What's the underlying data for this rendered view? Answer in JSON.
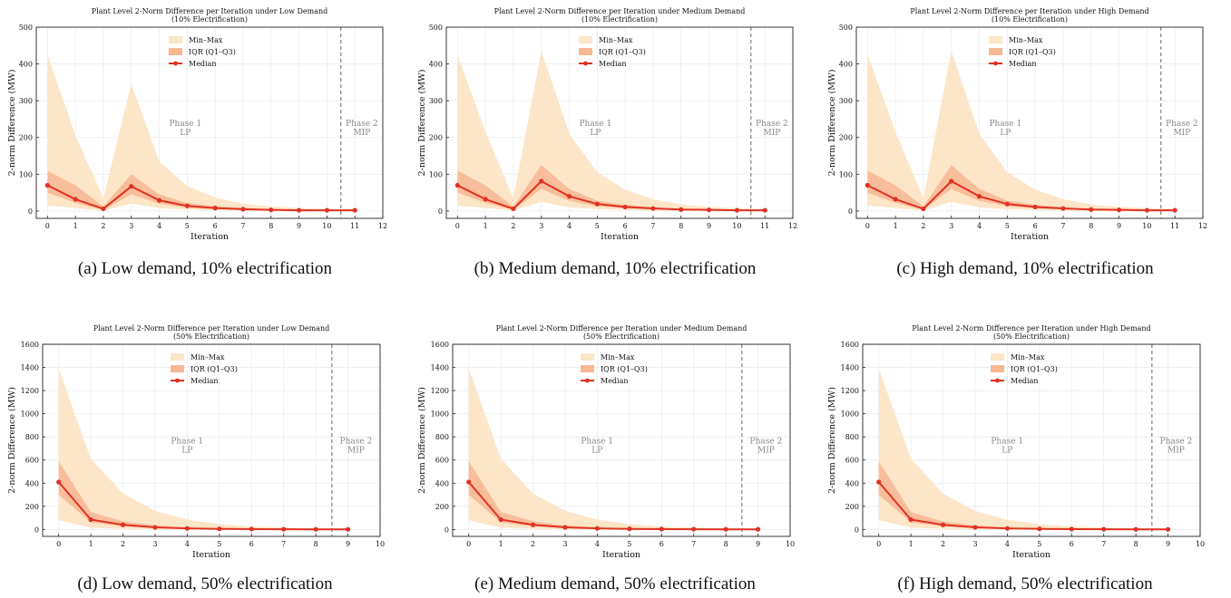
{
  "legend": {
    "minmax": "Min–Max",
    "iqr": "IQR (Q1–Q3)",
    "median": "Median"
  },
  "phase_labels": {
    "p1_line1": "Phase 1",
    "p1_line2": "LP",
    "p2_line1": "Phase 2",
    "p2_line2": "MIP"
  },
  "colors": {
    "minmax": "#fde5c8",
    "iqr": "#f7b793",
    "median": "#e03123",
    "phase_line": "#666666",
    "phase_text": "#888888"
  },
  "chart_data": [
    {
      "type": "area",
      "caption": "(a) Low demand, 10% electrification",
      "title": "Plant Level 2-Norm Difference per Iteration under Low  Demand",
      "subtitle": "(10% Electrification)",
      "xlabel": "Iteration",
      "ylabel": "2-norm Difference (MW)",
      "xlim": [
        -0.4,
        12
      ],
      "ylim": [
        -20,
        500
      ],
      "xticks": [
        0,
        1,
        2,
        3,
        4,
        5,
        6,
        7,
        8,
        9,
        10,
        11,
        12
      ],
      "yticks": [
        0,
        100,
        200,
        300,
        400,
        500
      ],
      "phase_boundary": 10.5,
      "grid": true,
      "legend_position": "top-center",
      "x": [
        0,
        1,
        2,
        3,
        4,
        5,
        6,
        7,
        8,
        9,
        10,
        11
      ],
      "series": [
        {
          "name": "Median",
          "values": [
            70,
            32,
            6,
            67,
            29,
            14,
            8,
            5,
            3,
            2,
            2,
            2
          ]
        },
        {
          "name": "IQR (Q1–Q3)",
          "lower": [
            50,
            22,
            3,
            45,
            20,
            9,
            5,
            3,
            2,
            1,
            1,
            1
          ],
          "upper": [
            110,
            70,
            12,
            100,
            45,
            22,
            13,
            8,
            5,
            3,
            3,
            3
          ]
        },
        {
          "name": "Min–Max",
          "lower": [
            15,
            8,
            1,
            20,
            8,
            4,
            2,
            1,
            0,
            0,
            0,
            0
          ],
          "upper": [
            425,
            205,
            35,
            345,
            135,
            68,
            37,
            20,
            12,
            8,
            6,
            5
          ]
        }
      ]
    },
    {
      "type": "area",
      "caption": "(b) Medium demand, 10% electrification",
      "title": "Plant Level 2-Norm Difference per Iteration under Medium  Demand",
      "subtitle": "(10% Electrification)",
      "xlabel": "Iteration",
      "ylabel": "2-norm Difference (MW)",
      "xlim": [
        -0.4,
        12
      ],
      "ylim": [
        -20,
        500
      ],
      "xticks": [
        0,
        1,
        2,
        3,
        4,
        5,
        6,
        7,
        8,
        9,
        10,
        11,
        12
      ],
      "yticks": [
        0,
        100,
        200,
        300,
        400,
        500
      ],
      "phase_boundary": 10.5,
      "grid": true,
      "legend_position": "top-center",
      "x": [
        0,
        1,
        2,
        3,
        4,
        5,
        6,
        7,
        8,
        9,
        10,
        11
      ],
      "series": [
        {
          "name": "Median",
          "values": [
            70,
            32,
            6,
            81,
            40,
            19,
            11,
            7,
            4,
            3,
            2,
            2
          ]
        },
        {
          "name": "IQR (Q1–Q3)",
          "lower": [
            50,
            22,
            3,
            60,
            27,
            13,
            7,
            4,
            3,
            2,
            1,
            1
          ],
          "upper": [
            110,
            70,
            12,
            125,
            60,
            28,
            17,
            10,
            6,
            4,
            3,
            3
          ]
        },
        {
          "name": "Min–Max",
          "lower": [
            15,
            8,
            1,
            25,
            10,
            5,
            3,
            1,
            0,
            0,
            0,
            0
          ],
          "upper": [
            425,
            215,
            35,
            435,
            210,
            105,
            58,
            32,
            18,
            11,
            8,
            6
          ]
        }
      ]
    },
    {
      "type": "area",
      "caption": "(c) High demand, 10% electrification",
      "title": "Plant Level 2-Norm Difference per Iteration under High  Demand",
      "subtitle": "(10% Electrification)",
      "xlabel": "Iteration",
      "ylabel": "2-norm Difference (MW)",
      "xlim": [
        -0.4,
        12
      ],
      "ylim": [
        -20,
        500
      ],
      "xticks": [
        0,
        1,
        2,
        3,
        4,
        5,
        6,
        7,
        8,
        9,
        10,
        11,
        12
      ],
      "yticks": [
        0,
        100,
        200,
        300,
        400,
        500
      ],
      "phase_boundary": 10.5,
      "grid": true,
      "legend_position": "top-center",
      "x": [
        0,
        1,
        2,
        3,
        4,
        5,
        6,
        7,
        8,
        9,
        10,
        11
      ],
      "series": [
        {
          "name": "Median",
          "values": [
            70,
            32,
            6,
            81,
            40,
            19,
            11,
            7,
            4,
            3,
            2,
            2
          ]
        },
        {
          "name": "IQR (Q1–Q3)",
          "lower": [
            50,
            22,
            3,
            60,
            27,
            13,
            7,
            4,
            3,
            2,
            1,
            1
          ],
          "upper": [
            110,
            70,
            12,
            125,
            60,
            28,
            17,
            10,
            6,
            4,
            3,
            3
          ]
        },
        {
          "name": "Min–Max",
          "lower": [
            15,
            8,
            1,
            25,
            10,
            5,
            3,
            1,
            0,
            0,
            0,
            0
          ],
          "upper": [
            425,
            215,
            35,
            435,
            210,
            105,
            58,
            32,
            18,
            11,
            8,
            6
          ]
        }
      ]
    },
    {
      "type": "area",
      "caption": "(d) Low demand, 50% electrification",
      "title": "Plant Level 2-Norm Difference per Iteration under Low  Demand",
      "subtitle": "(50% Electrification)",
      "xlabel": "Iteration",
      "ylabel": "2-norm Difference (MW)",
      "xlim": [
        -0.5,
        10
      ],
      "ylim": [
        -60,
        1600
      ],
      "xticks": [
        0,
        1,
        2,
        3,
        4,
        5,
        6,
        7,
        8,
        9,
        10
      ],
      "yticks": [
        0,
        200,
        400,
        600,
        800,
        1000,
        1200,
        1400,
        1600
      ],
      "phase_boundary": 8.5,
      "grid": true,
      "legend_position": "top-center",
      "x": [
        0,
        1,
        2,
        3,
        4,
        5,
        6,
        7,
        8,
        9
      ],
      "series": [
        {
          "name": "Median",
          "values": [
            410,
            85,
            40,
            18,
            9,
            5,
            3,
            2,
            1,
            1
          ]
        },
        {
          "name": "IQR (Q1–Q3)",
          "lower": [
            300,
            60,
            28,
            12,
            6,
            3,
            2,
            1,
            1,
            0
          ],
          "upper": [
            590,
            150,
            70,
            35,
            18,
            10,
            6,
            4,
            2,
            2
          ]
        },
        {
          "name": "Min–Max",
          "lower": [
            80,
            15,
            5,
            2,
            1,
            0,
            0,
            0,
            0,
            0
          ],
          "upper": [
            1390,
            610,
            310,
            160,
            85,
            45,
            25,
            15,
            10,
            8
          ]
        }
      ]
    },
    {
      "type": "area",
      "caption": "(e) Medium demand, 50% electrification",
      "title": "Plant Level 2-Norm Difference per Iteration under Medium  Demand",
      "subtitle": "(50% Electrification)",
      "xlabel": "Iteration",
      "ylabel": "2-norm Difference (MW)",
      "xlim": [
        -0.5,
        10
      ],
      "ylim": [
        -60,
        1600
      ],
      "xticks": [
        0,
        1,
        2,
        3,
        4,
        5,
        6,
        7,
        8,
        9,
        10
      ],
      "yticks": [
        0,
        200,
        400,
        600,
        800,
        1000,
        1200,
        1400,
        1600
      ],
      "phase_boundary": 8.5,
      "grid": true,
      "legend_position": "top-center",
      "x": [
        0,
        1,
        2,
        3,
        4,
        5,
        6,
        7,
        8,
        9
      ],
      "series": [
        {
          "name": "Median",
          "values": [
            410,
            85,
            40,
            18,
            9,
            5,
            3,
            2,
            1,
            1
          ]
        },
        {
          "name": "IQR (Q1–Q3)",
          "lower": [
            300,
            60,
            28,
            12,
            6,
            3,
            2,
            1,
            1,
            0
          ],
          "upper": [
            590,
            150,
            70,
            35,
            18,
            10,
            6,
            4,
            2,
            2
          ]
        },
        {
          "name": "Min–Max",
          "lower": [
            80,
            15,
            5,
            2,
            1,
            0,
            0,
            0,
            0,
            0
          ],
          "upper": [
            1390,
            610,
            310,
            160,
            85,
            45,
            25,
            15,
            10,
            8
          ]
        }
      ]
    },
    {
      "type": "area",
      "caption": "(f) High demand, 50% electrification",
      "title": "Plant Level 2-Norm Difference per Iteration under High  Demand",
      "subtitle": "(50% Electrification)",
      "xlabel": "Iteration",
      "ylabel": "2-norm Difference (MW)",
      "xlim": [
        -0.5,
        10
      ],
      "ylim": [
        -60,
        1600
      ],
      "xticks": [
        0,
        1,
        2,
        3,
        4,
        5,
        6,
        7,
        8,
        9,
        10
      ],
      "yticks": [
        0,
        200,
        400,
        600,
        800,
        1000,
        1200,
        1400,
        1600
      ],
      "phase_boundary": 8.5,
      "grid": true,
      "legend_position": "top-center",
      "x": [
        0,
        1,
        2,
        3,
        4,
        5,
        6,
        7,
        8,
        9
      ],
      "series": [
        {
          "name": "Median",
          "values": [
            410,
            85,
            40,
            18,
            9,
            5,
            3,
            2,
            1,
            1
          ]
        },
        {
          "name": "IQR (Q1–Q3)",
          "lower": [
            300,
            60,
            28,
            12,
            6,
            3,
            2,
            1,
            1,
            0
          ],
          "upper": [
            590,
            150,
            70,
            35,
            18,
            10,
            6,
            4,
            2,
            2
          ]
        },
        {
          "name": "Min–Max",
          "lower": [
            80,
            15,
            5,
            2,
            1,
            0,
            0,
            0,
            0,
            0
          ],
          "upper": [
            1390,
            610,
            310,
            160,
            85,
            45,
            25,
            15,
            10,
            8
          ]
        }
      ]
    }
  ]
}
